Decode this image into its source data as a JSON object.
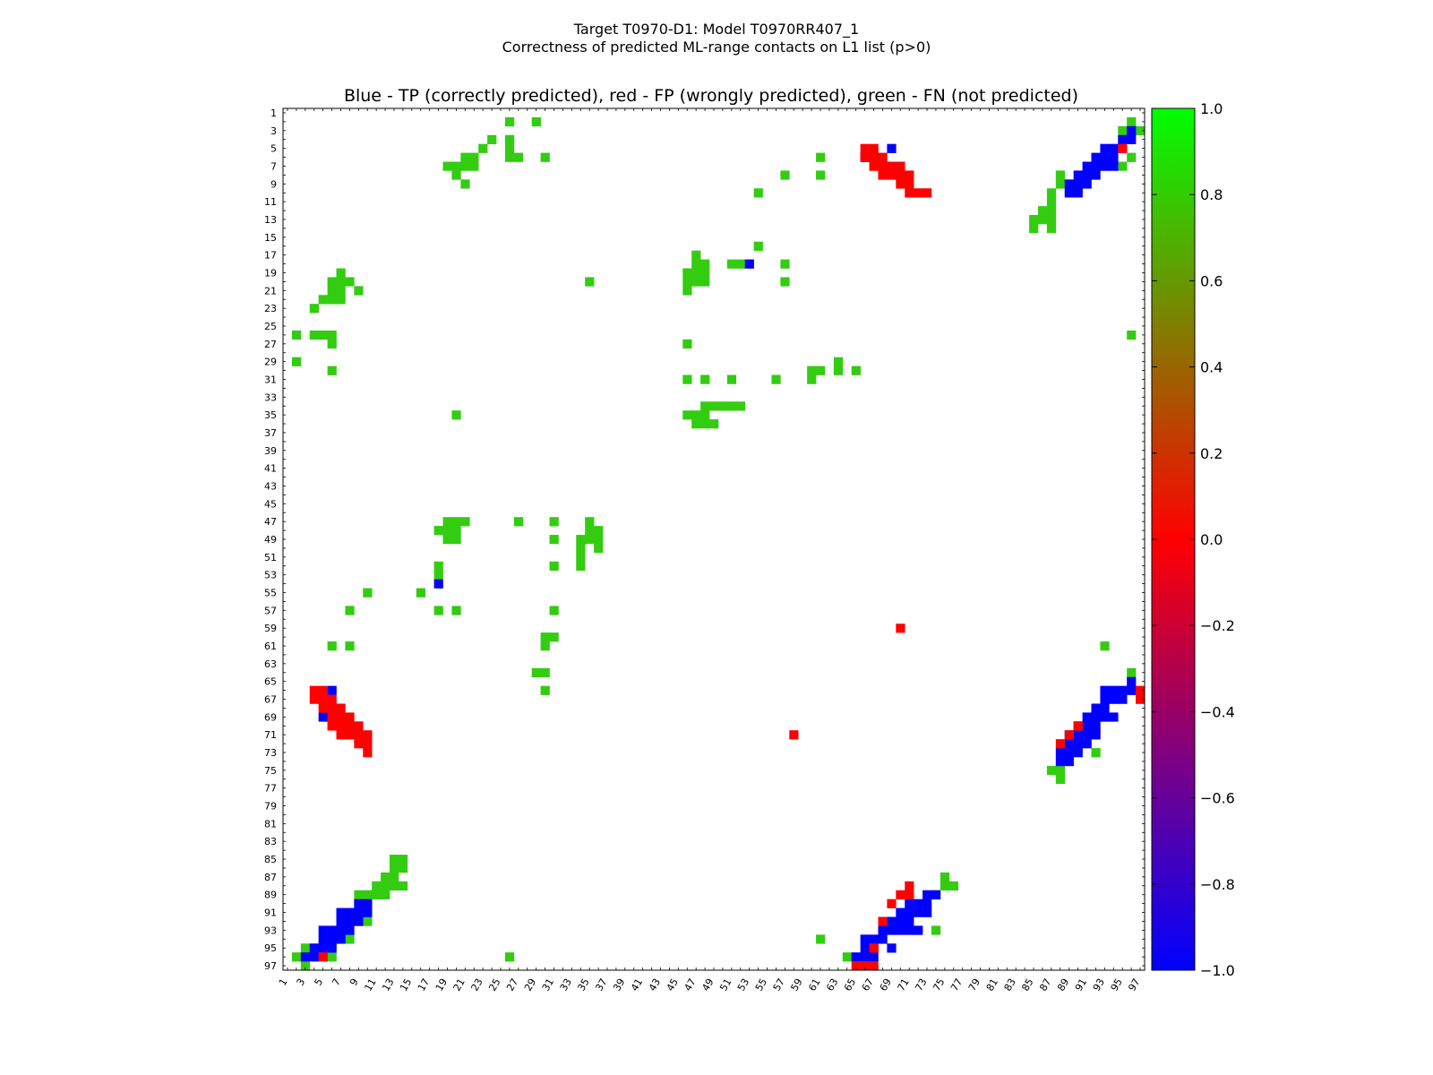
{
  "figure": {
    "title_line1": "Target T0970-D1: Model T0970RR407_1",
    "title_line2": "Correctness of predicted ML-range contacts on L1 list (p>0)"
  },
  "chart_data": {
    "type": "heatmap",
    "title": "Blue - TP (correctly predicted), red - FP (wrongly predicted), green - FN (not predicted)",
    "xlim": [
      1,
      97
    ],
    "ylim": [
      1,
      97
    ],
    "x_ticks": [
      1,
      3,
      5,
      7,
      9,
      11,
      13,
      15,
      17,
      19,
      21,
      23,
      25,
      27,
      29,
      31,
      33,
      35,
      37,
      39,
      41,
      43,
      45,
      47,
      49,
      51,
      53,
      55,
      57,
      59,
      61,
      63,
      65,
      67,
      69,
      71,
      73,
      75,
      77,
      79,
      81,
      83,
      85,
      87,
      89,
      91,
      93,
      95,
      97
    ],
    "y_ticks": [
      1,
      3,
      5,
      7,
      9,
      11,
      13,
      15,
      17,
      19,
      21,
      23,
      25,
      27,
      29,
      31,
      33,
      35,
      37,
      39,
      41,
      43,
      45,
      47,
      49,
      51,
      53,
      55,
      57,
      59,
      61,
      63,
      65,
      67,
      69,
      71,
      73,
      75,
      77,
      79,
      81,
      83,
      85,
      87,
      89,
      91,
      93,
      95,
      97
    ],
    "colorbar": {
      "range": [
        -1.0,
        1.0
      ],
      "ticks": [
        "1.0",
        "0.8",
        "0.6",
        "0.4",
        "0.2",
        "0.0",
        "−0.2",
        "−0.4",
        "−0.6",
        "−0.8",
        "−1.0"
      ],
      "stops": [
        "#0000ff",
        "#ff0000",
        "#00ff00"
      ]
    },
    "colors": {
      "TP": "#0000ff",
      "FP": "#ff0000",
      "FN": "#33cc11"
    },
    "cells": {
      "FN": [
        [
          26,
          2
        ],
        [
          29,
          2
        ],
        [
          96,
          2
        ],
        [
          95,
          3
        ],
        [
          97,
          3
        ],
        [
          24,
          4
        ],
        [
          26,
          4
        ],
        [
          23,
          5
        ],
        [
          26,
          5
        ],
        [
          21,
          6
        ],
        [
          22,
          6
        ],
        [
          26,
          6
        ],
        [
          27,
          6
        ],
        [
          30,
          6
        ],
        [
          61,
          6
        ],
        [
          96,
          6
        ],
        [
          19,
          7
        ],
        [
          20,
          7
        ],
        [
          21,
          7
        ],
        [
          22,
          7
        ],
        [
          95,
          7
        ],
        [
          20,
          8
        ],
        [
          57,
          8
        ],
        [
          61,
          8
        ],
        [
          88,
          8
        ],
        [
          21,
          9
        ],
        [
          88,
          9
        ],
        [
          90,
          9
        ],
        [
          54,
          10
        ],
        [
          87,
          10
        ],
        [
          87,
          11
        ],
        [
          86,
          12
        ],
        [
          87,
          12
        ],
        [
          85,
          13
        ],
        [
          86,
          13
        ],
        [
          87,
          13
        ],
        [
          85,
          14
        ],
        [
          87,
          14
        ],
        [
          54,
          16
        ],
        [
          47,
          17
        ],
        [
          47,
          18
        ],
        [
          48,
          18
        ],
        [
          51,
          18
        ],
        [
          52,
          18
        ],
        [
          57,
          18
        ],
        [
          7,
          19
        ],
        [
          46,
          19
        ],
        [
          47,
          19
        ],
        [
          48,
          19
        ],
        [
          6,
          20
        ],
        [
          7,
          20
        ],
        [
          8,
          20
        ],
        [
          35,
          20
        ],
        [
          46,
          20
        ],
        [
          47,
          20
        ],
        [
          48,
          20
        ],
        [
          57,
          20
        ],
        [
          6,
          21
        ],
        [
          7,
          21
        ],
        [
          9,
          21
        ],
        [
          46,
          21
        ],
        [
          5,
          22
        ],
        [
          6,
          22
        ],
        [
          7,
          22
        ],
        [
          4,
          23
        ],
        [
          2,
          26
        ],
        [
          4,
          26
        ],
        [
          5,
          26
        ],
        [
          6,
          26
        ],
        [
          96,
          26
        ],
        [
          6,
          27
        ],
        [
          46,
          27
        ],
        [
          2,
          29
        ],
        [
          63,
          29
        ],
        [
          6,
          30
        ],
        [
          60,
          30
        ],
        [
          61,
          30
        ],
        [
          63,
          30
        ],
        [
          65,
          30
        ],
        [
          46,
          31
        ],
        [
          48,
          31
        ],
        [
          51,
          31
        ],
        [
          56,
          31
        ],
        [
          60,
          31
        ],
        [
          48,
          34
        ],
        [
          49,
          34
        ],
        [
          50,
          34
        ],
        [
          51,
          34
        ],
        [
          52,
          34
        ],
        [
          20,
          35
        ],
        [
          46,
          35
        ],
        [
          47,
          35
        ],
        [
          48,
          35
        ],
        [
          47,
          36
        ],
        [
          48,
          36
        ],
        [
          49,
          36
        ],
        [
          19,
          47
        ],
        [
          20,
          47
        ],
        [
          21,
          47
        ],
        [
          27,
          47
        ],
        [
          31,
          47
        ],
        [
          35,
          47
        ],
        [
          18,
          48
        ],
        [
          19,
          48
        ],
        [
          20,
          48
        ],
        [
          35,
          48
        ],
        [
          36,
          48
        ],
        [
          19,
          49
        ],
        [
          20,
          49
        ],
        [
          31,
          49
        ],
        [
          34,
          49
        ],
        [
          35,
          49
        ],
        [
          36,
          49
        ],
        [
          34,
          50
        ],
        [
          36,
          50
        ],
        [
          34,
          51
        ],
        [
          34,
          52
        ],
        [
          31,
          52
        ],
        [
          18,
          52
        ],
        [
          18,
          53
        ],
        [
          10,
          55
        ],
        [
          16,
          55
        ],
        [
          8,
          57
        ],
        [
          18,
          57
        ],
        [
          20,
          57
        ],
        [
          31,
          57
        ],
        [
          30,
          60
        ],
        [
          31,
          60
        ],
        [
          30,
          61
        ],
        [
          6,
          61
        ],
        [
          8,
          61
        ],
        [
          93,
          61
        ],
        [
          29,
          64
        ],
        [
          30,
          64
        ],
        [
          96,
          64
        ],
        [
          30,
          66
        ],
        [
          92,
          73
        ],
        [
          87,
          75
        ],
        [
          88,
          75
        ],
        [
          88,
          76
        ],
        [
          13,
          85
        ],
        [
          14,
          85
        ],
        [
          13,
          86
        ],
        [
          14,
          86
        ],
        [
          12,
          87
        ],
        [
          13,
          87
        ],
        [
          75,
          87
        ],
        [
          11,
          88
        ],
        [
          12,
          88
        ],
        [
          13,
          88
        ],
        [
          14,
          88
        ],
        [
          75,
          88
        ],
        [
          76,
          88
        ],
        [
          9,
          89
        ],
        [
          10,
          89
        ],
        [
          11,
          89
        ],
        [
          12,
          89
        ],
        [
          74,
          89
        ],
        [
          10,
          92
        ],
        [
          74,
          93
        ],
        [
          8,
          94
        ],
        [
          61,
          94
        ],
        [
          3,
          95
        ],
        [
          2,
          96
        ],
        [
          6,
          96
        ],
        [
          26,
          96
        ],
        [
          64,
          96
        ],
        [
          3,
          97
        ]
      ],
      "TP": [
        [
          96,
          3
        ],
        [
          95,
          4
        ],
        [
          96,
          4
        ],
        [
          69,
          5
        ],
        [
          93,
          5
        ],
        [
          94,
          5
        ],
        [
          95,
          5
        ],
        [
          66,
          6
        ],
        [
          92,
          6
        ],
        [
          93,
          6
        ],
        [
          94,
          6
        ],
        [
          91,
          7
        ],
        [
          92,
          7
        ],
        [
          93,
          7
        ],
        [
          94,
          7
        ],
        [
          90,
          8
        ],
        [
          91,
          8
        ],
        [
          92,
          8
        ],
        [
          89,
          9
        ],
        [
          90,
          9
        ],
        [
          91,
          9
        ],
        [
          89,
          10
        ],
        [
          90,
          10
        ],
        [
          53,
          18
        ],
        [
          18,
          54
        ],
        [
          6,
          66
        ],
        [
          96,
          65
        ],
        [
          93,
          66
        ],
        [
          94,
          66
        ],
        [
          95,
          66
        ],
        [
          96,
          66
        ],
        [
          93,
          67
        ],
        [
          94,
          67
        ],
        [
          95,
          67
        ],
        [
          92,
          68
        ],
        [
          93,
          68
        ],
        [
          91,
          69
        ],
        [
          92,
          69
        ],
        [
          93,
          69
        ],
        [
          94,
          69
        ],
        [
          5,
          69
        ],
        [
          90,
          70
        ],
        [
          91,
          70
        ],
        [
          92,
          70
        ],
        [
          89,
          71
        ],
        [
          90,
          71
        ],
        [
          91,
          71
        ],
        [
          92,
          71
        ],
        [
          89,
          72
        ],
        [
          90,
          72
        ],
        [
          91,
          72
        ],
        [
          88,
          73
        ],
        [
          89,
          73
        ],
        [
          90,
          73
        ],
        [
          88,
          74
        ],
        [
          89,
          74
        ],
        [
          73,
          89
        ],
        [
          74,
          89
        ],
        [
          73,
          90
        ],
        [
          71,
          90
        ],
        [
          72,
          90
        ],
        [
          9,
          90
        ],
        [
          10,
          90
        ],
        [
          7,
          91
        ],
        [
          8,
          91
        ],
        [
          9,
          91
        ],
        [
          10,
          91
        ],
        [
          70,
          91
        ],
        [
          71,
          91
        ],
        [
          72,
          91
        ],
        [
          73,
          91
        ],
        [
          7,
          92
        ],
        [
          8,
          92
        ],
        [
          9,
          92
        ],
        [
          69,
          92
        ],
        [
          70,
          92
        ],
        [
          71,
          92
        ],
        [
          5,
          93
        ],
        [
          6,
          93
        ],
        [
          7,
          93
        ],
        [
          8,
          93
        ],
        [
          68,
          93
        ],
        [
          69,
          93
        ],
        [
          70,
          93
        ],
        [
          71,
          93
        ],
        [
          72,
          93
        ],
        [
          5,
          94
        ],
        [
          6,
          94
        ],
        [
          7,
          94
        ],
        [
          66,
          94
        ],
        [
          67,
          94
        ],
        [
          68,
          94
        ],
        [
          4,
          95
        ],
        [
          5,
          95
        ],
        [
          6,
          95
        ],
        [
          66,
          95
        ],
        [
          67,
          95
        ],
        [
          69,
          95
        ],
        [
          3,
          96
        ],
        [
          4,
          96
        ],
        [
          65,
          96
        ],
        [
          66,
          96
        ],
        [
          67,
          96
        ]
      ],
      "FP": [
        [
          66,
          5
        ],
        [
          67,
          5
        ],
        [
          95,
          5
        ],
        [
          66,
          6
        ],
        [
          67,
          6
        ],
        [
          68,
          6
        ],
        [
          67,
          7
        ],
        [
          68,
          7
        ],
        [
          69,
          7
        ],
        [
          70,
          7
        ],
        [
          68,
          8
        ],
        [
          69,
          8
        ],
        [
          70,
          8
        ],
        [
          71,
          8
        ],
        [
          70,
          9
        ],
        [
          71,
          9
        ],
        [
          71,
          10
        ],
        [
          72,
          10
        ],
        [
          73,
          10
        ],
        [
          70,
          59
        ],
        [
          4,
          66
        ],
        [
          5,
          66
        ],
        [
          97,
          66
        ],
        [
          4,
          67
        ],
        [
          5,
          67
        ],
        [
          6,
          67
        ],
        [
          97,
          67
        ],
        [
          5,
          68
        ],
        [
          6,
          68
        ],
        [
          7,
          68
        ],
        [
          6,
          69
        ],
        [
          7,
          69
        ],
        [
          8,
          69
        ],
        [
          6,
          70
        ],
        [
          7,
          70
        ],
        [
          8,
          70
        ],
        [
          9,
          70
        ],
        [
          58,
          71
        ],
        [
          7,
          71
        ],
        [
          8,
          71
        ],
        [
          9,
          71
        ],
        [
          10,
          71
        ],
        [
          90,
          70
        ],
        [
          89,
          71
        ],
        [
          88,
          72
        ],
        [
          9,
          72
        ],
        [
          10,
          72
        ],
        [
          10,
          73
        ],
        [
          71,
          88
        ],
        [
          70,
          89
        ],
        [
          71,
          89
        ],
        [
          69,
          90
        ],
        [
          68,
          92
        ],
        [
          67,
          95
        ],
        [
          5,
          96
        ],
        [
          65,
          97
        ],
        [
          66,
          97
        ],
        [
          67,
          97
        ]
      ]
    }
  }
}
